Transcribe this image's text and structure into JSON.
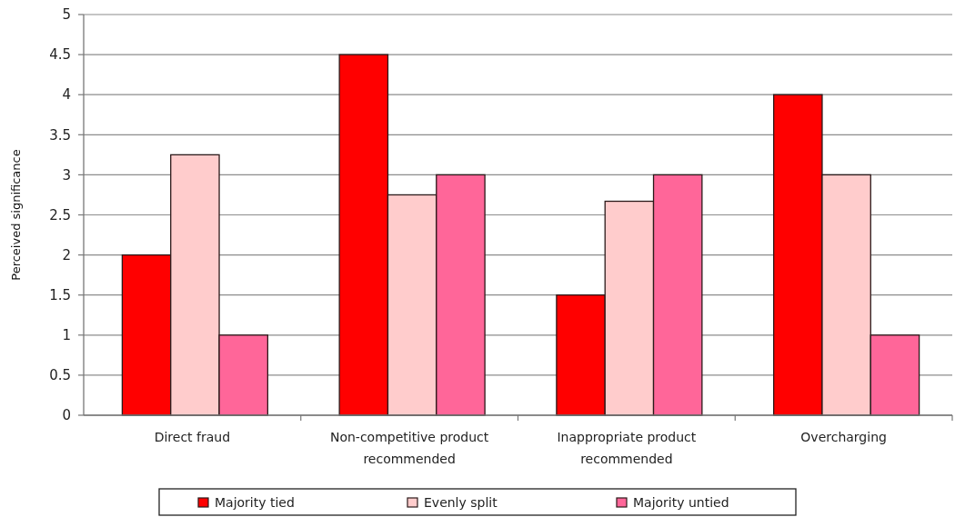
{
  "chart_data": {
    "type": "bar",
    "ylabel": "Perceived significance",
    "categories": [
      "Direct fraud",
      "Non-competitive product recommended",
      "Inappropriate product recommended",
      "Overcharging"
    ],
    "series": [
      {
        "name": "Majority tied",
        "color": "#ff0000",
        "values": [
          2,
          4.5,
          1.5,
          4
        ]
      },
      {
        "name": "Evenly split",
        "color": "#ffcccc",
        "values": [
          3.25,
          2.75,
          2.67,
          3
        ]
      },
      {
        "name": "Majority untied",
        "color": "#ff6699",
        "values": [
          1,
          3,
          3,
          1
        ]
      }
    ],
    "ylim": [
      0,
      5
    ],
    "yticks": [
      0,
      0.5,
      1,
      1.5,
      2,
      2.5,
      3,
      3.5,
      4,
      4.5,
      5
    ],
    "grid": "y",
    "legend": "bottom"
  }
}
